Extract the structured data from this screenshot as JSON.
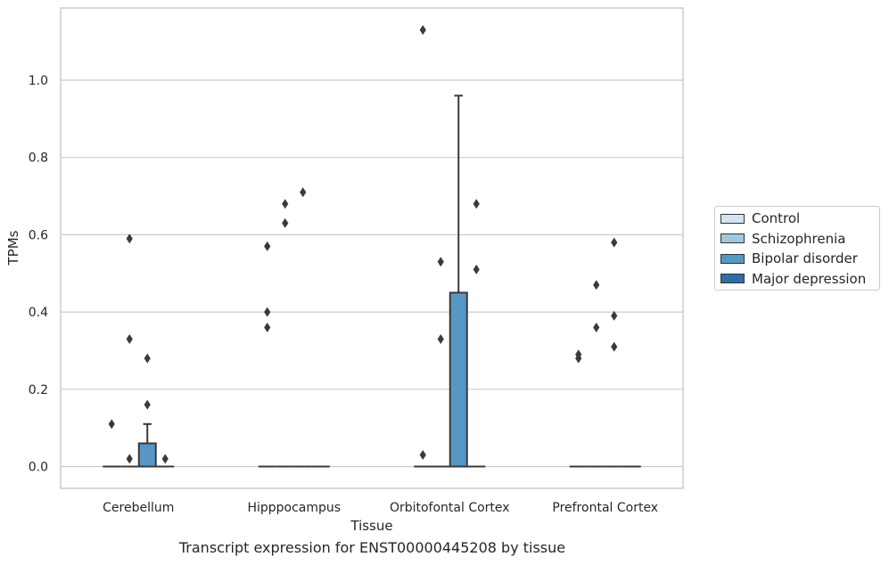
{
  "chart_data": {
    "type": "box",
    "title": "",
    "caption": "Transcript expression for ENST00000445208 by tissue",
    "xlabel": "Tissue",
    "ylabel": "TPMs",
    "ylim": [
      -0.055,
      1.18
    ],
    "yticks": [
      0.0,
      0.2,
      0.4,
      0.6,
      0.8,
      1.0
    ],
    "ytick_labels": [
      "0.0",
      "0.2",
      "0.4",
      "0.6",
      "0.8",
      "1.0"
    ],
    "grid": "horizontal",
    "legend_position": "right",
    "categories": [
      "Cerebellum",
      "Hipppocampus",
      "Orbitofontal Cortex",
      "Prefrontal Cortex"
    ],
    "series": [
      {
        "name": "Control",
        "color": "#d4e4f2",
        "boxes": [
          {
            "q1": 0.0,
            "median": 0.0,
            "q3": 0.0,
            "whisker_low": 0.0,
            "whisker_high": 0.0,
            "outliers": [
              0.11
            ]
          },
          {
            "q1": 0.0,
            "median": 0.0,
            "q3": 0.0,
            "whisker_low": 0.0,
            "whisker_high": 0.0,
            "outliers": [
              0.36,
              0.4,
              0.57
            ]
          },
          {
            "q1": 0.0,
            "median": 0.0,
            "q3": 0.0,
            "whisker_low": 0.0,
            "whisker_high": 0.0,
            "outliers": [
              0.03,
              1.13
            ]
          },
          {
            "q1": 0.0,
            "median": 0.0,
            "q3": 0.0,
            "whisker_low": 0.0,
            "whisker_high": 0.0,
            "outliers": [
              0.28,
              0.29
            ]
          }
        ]
      },
      {
        "name": "Schizophrenia",
        "color": "#a1c6de",
        "boxes": [
          {
            "q1": 0.0,
            "median": 0.0,
            "q3": 0.0,
            "whisker_low": 0.0,
            "whisker_high": 0.0,
            "outliers": [
              0.02,
              0.33,
              0.59
            ]
          },
          {
            "q1": 0.0,
            "median": 0.0,
            "q3": 0.0,
            "whisker_low": 0.0,
            "whisker_high": 0.0,
            "outliers": [
              0.63,
              0.68
            ]
          },
          {
            "q1": 0.0,
            "median": 0.0,
            "q3": 0.0,
            "whisker_low": 0.0,
            "whisker_high": 0.0,
            "outliers": [
              0.33,
              0.53
            ]
          },
          {
            "q1": 0.0,
            "median": 0.0,
            "q3": 0.0,
            "whisker_low": 0.0,
            "whisker_high": 0.0,
            "outliers": [
              0.36,
              0.47
            ]
          }
        ]
      },
      {
        "name": "Bipolar disorder",
        "color": "#5697c6",
        "boxes": [
          {
            "q1": 0.0,
            "median": 0.0,
            "q3": 0.06,
            "whisker_low": 0.0,
            "whisker_high": 0.11,
            "outliers": [
              0.16,
              0.28
            ]
          },
          {
            "q1": 0.0,
            "median": 0.0,
            "q3": 0.0,
            "whisker_low": 0.0,
            "whisker_high": 0.0,
            "outliers": [
              0.71
            ]
          },
          {
            "q1": 0.0,
            "median": 0.0,
            "q3": 0.45,
            "whisker_low": 0.0,
            "whisker_high": 0.96,
            "outliers": []
          },
          {
            "q1": 0.0,
            "median": 0.0,
            "q3": 0.0,
            "whisker_low": 0.0,
            "whisker_high": 0.0,
            "outliers": [
              0.31,
              0.39,
              0.58
            ]
          }
        ]
      },
      {
        "name": "Major depression",
        "color": "#2e6ea6",
        "boxes": [
          {
            "q1": 0.0,
            "median": 0.0,
            "q3": 0.0,
            "whisker_low": 0.0,
            "whisker_high": 0.0,
            "outliers": [
              0.02
            ]
          },
          {
            "q1": 0.0,
            "median": 0.0,
            "q3": 0.0,
            "whisker_low": 0.0,
            "whisker_high": 0.0,
            "outliers": []
          },
          {
            "q1": 0.0,
            "median": 0.0,
            "q3": 0.0,
            "whisker_low": 0.0,
            "whisker_high": 0.0,
            "outliers": [
              0.51,
              0.68
            ]
          },
          {
            "q1": 0.0,
            "median": 0.0,
            "q3": 0.0,
            "whisker_low": 0.0,
            "whisker_high": 0.0,
            "outliers": []
          }
        ]
      }
    ]
  }
}
